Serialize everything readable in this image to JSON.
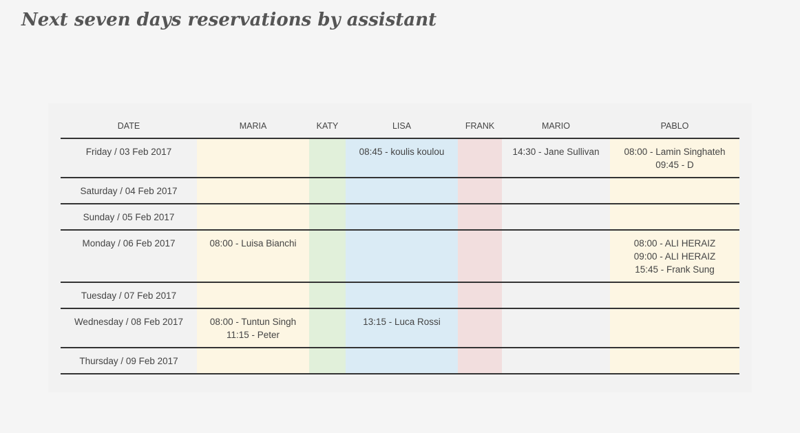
{
  "title": "Next seven days reservations by assistant",
  "columns": [
    "DATE",
    "MARIA",
    "KATY",
    "LISA",
    "FRANK",
    "MARIO",
    "PABLO"
  ],
  "colors": {
    "maria": "#fdf6e3",
    "katy": "#e1f0da",
    "lisa": "#daebf5",
    "frank": "#f2dede",
    "pablo": "#fdf6e3"
  },
  "rows": [
    {
      "date": "Friday / 03 Feb 2017",
      "maria": [],
      "katy": [],
      "lisa": [
        "08:45 - koulis koulou"
      ],
      "frank": [],
      "mario": [
        "14:30 - Jane Sullivan"
      ],
      "pablo": [
        "08:00 - Lamin Singhateh",
        "09:45 - D"
      ]
    },
    {
      "date": "Saturday / 04 Feb 2017",
      "maria": [],
      "katy": [],
      "lisa": [],
      "frank": [],
      "mario": [],
      "pablo": []
    },
    {
      "date": "Sunday / 05 Feb 2017",
      "maria": [],
      "katy": [],
      "lisa": [],
      "frank": [],
      "mario": [],
      "pablo": []
    },
    {
      "date": "Monday / 06 Feb 2017",
      "maria": [
        "08:00 - Luisa Bianchi"
      ],
      "katy": [],
      "lisa": [],
      "frank": [],
      "mario": [],
      "pablo": [
        "08:00 - ALI HERAIZ",
        "09:00 - ALI HERAIZ",
        "15:45 - Frank Sung"
      ]
    },
    {
      "date": "Tuesday / 07 Feb 2017",
      "maria": [],
      "katy": [],
      "lisa": [],
      "frank": [],
      "mario": [],
      "pablo": []
    },
    {
      "date": "Wednesday / 08 Feb 2017",
      "maria": [
        "08:00 - Tuntun Singh",
        "11:15 - Peter"
      ],
      "katy": [],
      "lisa": [
        "13:15 - Luca Rossi"
      ],
      "frank": [],
      "mario": [],
      "pablo": []
    },
    {
      "date": "Thursday / 09 Feb 2017",
      "maria": [],
      "katy": [],
      "lisa": [],
      "frank": [],
      "mario": [],
      "pablo": []
    }
  ]
}
